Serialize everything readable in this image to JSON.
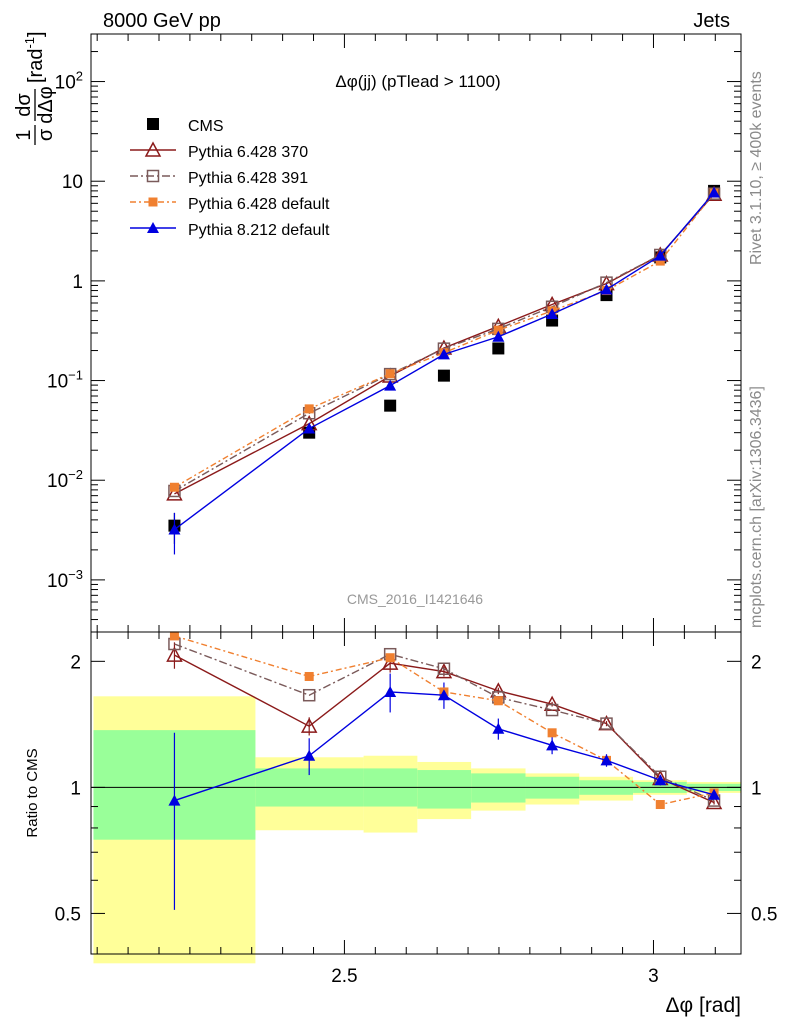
{
  "header": {
    "left_label": "8000 GeV pp",
    "right_label": "Jets",
    "side_label_top": "Rivet 3.1.10, ≥ 400k events",
    "side_label_bottom": "mcplots.cern.ch [arXiv:1306.3436]",
    "watermark": "CMS_2016_I1421646",
    "plot_title": "Δφ(jj) (pTlead >  1100)"
  },
  "chart_data": [
    {
      "type": "scatter",
      "panel": "main",
      "xlabel": "Δφ [rad]",
      "ylabel_fraction_num": "1",
      "ylabel_fraction_den": "σ",
      "ylabel_fraction2_num": "dσ",
      "ylabel_fraction2_den": "dΔφ",
      "ylabel_unit": "[rad",
      "ylabel_unit_sup": "-1",
      "ylabel_unit_close": "]",
      "yscale": "log",
      "xlim": [
        2.09,
        3.1416
      ],
      "ylim": [
        0.0003,
        300
      ],
      "y_ticks": [
        {
          "value": 0.001,
          "base": "10",
          "exp": "−3"
        },
        {
          "value": 0.01,
          "base": "10",
          "exp": "−2"
        },
        {
          "value": 0.1,
          "base": "10",
          "exp": "−1"
        },
        {
          "value": 1,
          "text": "1"
        },
        {
          "value": 10,
          "text": "10"
        },
        {
          "value": 100,
          "base": "10",
          "exp": "2"
        }
      ],
      "x": [
        2.225,
        2.443,
        2.574,
        2.661,
        2.749,
        2.836,
        2.924,
        3.011,
        3.098
      ],
      "series": [
        {
          "name": "CMS",
          "color": "#000000",
          "marker": "square-filled",
          "values": [
            0.0035,
            0.03,
            0.056,
            0.112,
            0.21,
            0.4,
            0.72,
            1.72,
            8.0
          ],
          "err": [
            0.0012,
            0.003,
            0.004,
            0.006,
            0.01,
            0.015,
            0.025,
            0.05,
            0.3
          ]
        },
        {
          "name": "Pythia 6.428 370",
          "color": "#8b1a1a",
          "marker": "triangle-open",
          "dash": "",
          "values": [
            0.0073,
            0.037,
            0.111,
            0.212,
            0.35,
            0.58,
            0.94,
            1.82,
            7.4
          ]
        },
        {
          "name": "Pythia 6.428 391",
          "color": "#7a5a5a",
          "marker": "square-open",
          "dash": "8,3,2,3",
          "values": [
            0.0078,
            0.047,
            0.116,
            0.209,
            0.33,
            0.55,
            0.96,
            1.82,
            7.5
          ]
        },
        {
          "name": "Pythia 6.428 default",
          "color": "#f08030",
          "marker": "square-filled-small",
          "dash": "6,3,2,3",
          "values": [
            0.0085,
            0.052,
            0.117,
            0.19,
            0.32,
            0.5,
            0.8,
            1.58,
            7.6
          ]
        },
        {
          "name": "Pythia 8.212 default",
          "color": "#0000e0",
          "marker": "triangle-filled",
          "dash": "",
          "values": [
            0.0032,
            0.033,
            0.089,
            0.183,
            0.275,
            0.465,
            0.82,
            1.79,
            7.7
          ]
        }
      ]
    },
    {
      "type": "line",
      "panel": "ratio",
      "ylabel": "Ratio to CMS",
      "xlabel": "Δφ [rad]",
      "yscale": "log",
      "ylim": [
        0.4,
        2.35
      ],
      "xlim": [
        2.09,
        3.1416
      ],
      "y_ticks": [
        {
          "value": 0.5,
          "text": "0.5"
        },
        {
          "value": 1,
          "text": "1"
        },
        {
          "value": 2,
          "text": "2"
        }
      ],
      "x_ticks": [
        {
          "value": 2.5,
          "text": "2.5"
        },
        {
          "value": 3,
          "text": "3"
        }
      ],
      "x": [
        2.225,
        2.443,
        2.574,
        2.661,
        2.749,
        2.836,
        2.924,
        3.011,
        3.098
      ],
      "bands": {
        "edges": [
          2.094,
          2.356,
          2.531,
          2.618,
          2.705,
          2.793,
          2.88,
          2.967,
          3.054,
          3.1416
        ],
        "stat_lo": [
          0.75,
          0.9,
          0.9,
          0.89,
          0.92,
          0.94,
          0.96,
          0.97,
          0.98
        ],
        "stat_hi": [
          1.37,
          1.11,
          1.11,
          1.1,
          1.08,
          1.06,
          1.04,
          1.03,
          1.02
        ],
        "tot_lo": [
          0.38,
          0.79,
          0.78,
          0.84,
          0.88,
          0.91,
          0.93,
          0.96,
          0.97
        ],
        "tot_hi": [
          1.65,
          1.18,
          1.19,
          1.15,
          1.11,
          1.08,
          1.06,
          1.04,
          1.03
        ],
        "stat_color": "#99ff99",
        "tot_color": "#ffff99"
      },
      "series": [
        {
          "name": "CMS",
          "color": "#0000e0",
          "values": [
            0.93,
            1.19,
            1.69,
            1.66,
            1.38,
            1.26,
            1.16,
            1.04,
            0.96
          ],
          "err": [
            0.42,
            0.12,
            0.18,
            0.12,
            0.08,
            0.06,
            0.04,
            0.03,
            0.02
          ],
          "role": "data-errors"
        },
        {
          "name": "Pythia 6.428 370",
          "color": "#8b1a1a",
          "marker": "triangle-open",
          "dash": "",
          "values": [
            2.07,
            1.4,
            1.98,
            1.89,
            1.7,
            1.58,
            1.42,
            1.05,
            0.92
          ],
          "err": [
            0.15,
            0.07,
            0.1,
            0.05,
            0.03,
            0.02,
            0.02,
            0.01,
            0.01
          ]
        },
        {
          "name": "Pythia 6.428 391",
          "color": "#7a5a5a",
          "marker": "square-open",
          "dash": "8,3,2,3",
          "values": [
            2.2,
            1.66,
            2.08,
            1.92,
            1.64,
            1.53,
            1.42,
            1.06,
            0.93
          ]
        },
        {
          "name": "Pythia 6.428 default",
          "color": "#f08030",
          "marker": "square-filled-small",
          "dash": "6,3,2,3",
          "values": [
            2.3,
            1.84,
            2.04,
            1.69,
            1.61,
            1.35,
            1.16,
            0.91,
            0.97
          ]
        },
        {
          "name": "Pythia 8.212 default",
          "color": "#0000e0",
          "marker": "triangle-filled",
          "dash": "",
          "values": [
            0.93,
            1.19,
            1.69,
            1.66,
            1.38,
            1.26,
            1.16,
            1.04,
            0.96
          ]
        }
      ]
    }
  ]
}
